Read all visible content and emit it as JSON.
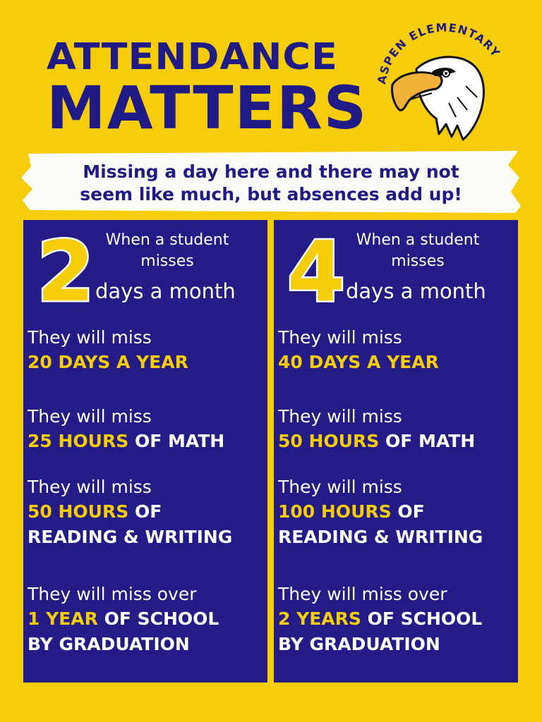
{
  "headline": {
    "line1": "ATTENDANCE",
    "line2": "MATTERS"
  },
  "badge": {
    "text": "ASPEN ELEMENTARY",
    "icon": "eagle-mascot-icon"
  },
  "banner": {
    "line1": "Missing a day here and there may not",
    "line2": "seem like much, but absences add up!"
  },
  "columns": [
    {
      "number": "2",
      "when_line1": "When a student",
      "when_line2": "misses",
      "days": "days a month",
      "stats": [
        {
          "lead": "They will miss",
          "highlight": "20 DAYS A YEAR",
          "rest": "",
          "rest2": ""
        },
        {
          "lead": "They will miss",
          "highlight": "25 HOURS",
          "rest": " OF MATH",
          "rest2": ""
        },
        {
          "lead": "They will miss",
          "highlight": "50 HOURS",
          "rest": " OF",
          "rest2": "READING & WRITING"
        },
        {
          "lead": "They will miss over",
          "highlight": "1 YEAR",
          "rest": " OF SCHOOL",
          "rest2": "BY GRADUATION"
        }
      ]
    },
    {
      "number": "4",
      "when_line1": "When a student",
      "when_line2": "misses",
      "days": "days a month",
      "stats": [
        {
          "lead": "They will miss",
          "highlight": "40 DAYS A YEAR",
          "rest": "",
          "rest2": ""
        },
        {
          "lead": "They will miss",
          "highlight": "50 HOURS",
          "rest": " OF MATH",
          "rest2": ""
        },
        {
          "lead": "They will miss",
          "highlight": "100 HOURS",
          "rest": " OF",
          "rest2": "READING & WRITING"
        },
        {
          "lead": "They will miss over",
          "highlight": "2 YEARS",
          "rest": " OF SCHOOL",
          "rest2": "BY GRADUATION"
        }
      ]
    }
  ],
  "colors": {
    "background": "#f5cd0a",
    "navy": "#241b86",
    "highlight": "#f5cd0a"
  }
}
